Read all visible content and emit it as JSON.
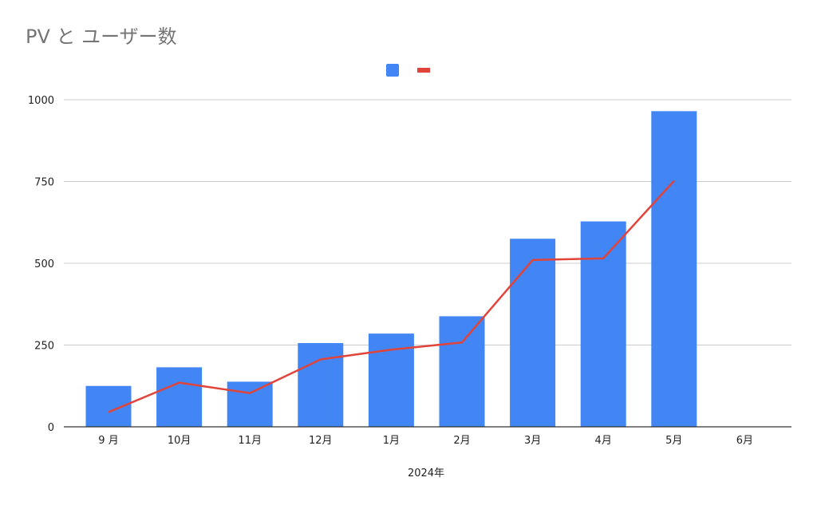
{
  "chart_data": {
    "type": "bar",
    "title": "PV と ユーザー数",
    "xlabel": "2024年",
    "ylabel": "",
    "categories": [
      "9 月",
      "10月",
      "11月",
      "12月",
      "1月",
      "2月",
      "3月",
      "4月",
      "5月",
      "6月"
    ],
    "series": [
      {
        "type": "bar",
        "color": "#4285F4",
        "values": [
          125,
          182,
          138,
          256,
          285,
          338,
          575,
          628,
          965,
          0
        ]
      },
      {
        "type": "line",
        "color": "#E0443A",
        "values": [
          45,
          135,
          103,
          206,
          236,
          258,
          510,
          515,
          752,
          null
        ]
      }
    ],
    "ylim": [
      0,
      1000
    ],
    "yticks": [
      0,
      250,
      500,
      750,
      1000
    ],
    "grid": true,
    "legend": "top-center"
  }
}
